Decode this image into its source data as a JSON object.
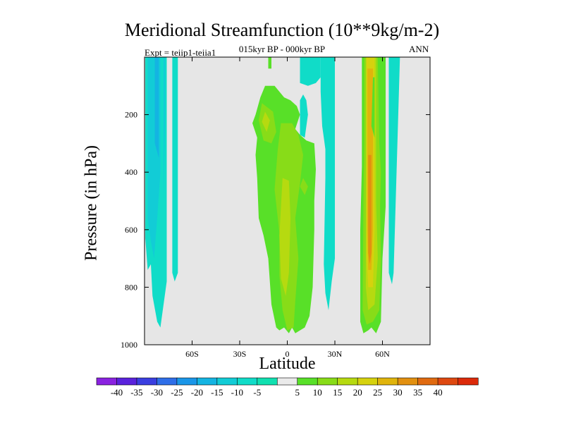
{
  "chart_data": {
    "type": "heatmap",
    "title": "Meridional Streamfunction (10**9kg/m-2)",
    "subtitle": "015kyr BP - 000kyr BP",
    "left_label": "Expt = teiip1-teiia1",
    "right_label": "ANN",
    "xlabel": "Latitude",
    "ylabel": "Pressure (in hPa)",
    "xlim": [
      -90,
      90
    ],
    "ylim": [
      1000,
      0
    ],
    "x_ticks": [
      {
        "value": -60,
        "label": "60S"
      },
      {
        "value": -30,
        "label": "30S"
      },
      {
        "value": 0,
        "label": "0"
      },
      {
        "value": 30,
        "label": "30N"
      },
      {
        "value": 60,
        "label": "60N"
      }
    ],
    "y_ticks": [
      {
        "value": 200,
        "label": "200"
      },
      {
        "value": 400,
        "label": "400"
      },
      {
        "value": 600,
        "label": "600"
      },
      {
        "value": 800,
        "label": "800"
      },
      {
        "value": 1000,
        "label": "1000"
      }
    ],
    "missing_color": "#e6e6e6",
    "colorbar": {
      "colors": [
        "#8a22e0",
        "#5a22dc",
        "#3a3ee0",
        "#2e6ee8",
        "#1a96e8",
        "#14b4e2",
        "#12ccd6",
        "#10dcc8",
        "#10e0b0",
        "#eaeaea",
        "#58e028",
        "#88dc18",
        "#b6da10",
        "#d6d20e",
        "#e0b40c",
        "#e29010",
        "#e06a10",
        "#de4810",
        "#dc2a0a"
      ],
      "labels": [
        "-40",
        "-35",
        "-30",
        "-25",
        "-20",
        "-15",
        "-10",
        "-5",
        "5",
        "10",
        "15",
        "20",
        "25",
        "30",
        "35",
        "40"
      ]
    },
    "regions": [
      {
        "value": -7.5,
        "color": "#10dcc8",
        "points": [
          [
            -89.5,
            0
          ],
          [
            -89.5,
            630
          ],
          [
            -88,
            740
          ],
          [
            -86,
            720
          ],
          [
            -85,
            830
          ],
          [
            -82,
            920
          ],
          [
            -80,
            940
          ],
          [
            -78,
            860
          ],
          [
            -76,
            780
          ],
          [
            -76,
            0
          ]
        ]
      },
      {
        "value": -12.5,
        "color": "#12ccd6",
        "points": [
          [
            -88,
            0
          ],
          [
            -88,
            560
          ],
          [
            -86,
            640
          ],
          [
            -84,
            700
          ],
          [
            -82,
            560
          ],
          [
            -80,
            400
          ],
          [
            -80,
            0
          ]
        ]
      },
      {
        "value": -12.5,
        "color": "#12ccd6",
        "points": [
          [
            -78,
            0
          ],
          [
            -78,
            500
          ],
          [
            -77,
            200
          ],
          [
            -77,
            0
          ]
        ]
      },
      {
        "value": -17.5,
        "color": "#14b4e2",
        "points": [
          [
            -83.5,
            0
          ],
          [
            -83.5,
            300
          ],
          [
            -81,
            350
          ],
          [
            -81,
            0
          ]
        ]
      },
      {
        "value": -7.5,
        "color": "#10dcc8",
        "points": [
          [
            -72.5,
            0
          ],
          [
            -72.5,
            750
          ],
          [
            -71,
            780
          ],
          [
            -69,
            750
          ],
          [
            -69,
            0
          ]
        ]
      },
      {
        "value": 7.5,
        "color": "#58e028",
        "points": [
          [
            -12,
            0
          ],
          [
            -12,
            40
          ],
          [
            -10,
            40
          ],
          [
            -10,
            0
          ]
        ]
      },
      {
        "value": 7.5,
        "color": "#58e028",
        "points": [
          [
            -20,
            200
          ],
          [
            -22,
            230
          ],
          [
            -19,
            280
          ],
          [
            -20,
            340
          ],
          [
            -19,
            420
          ],
          [
            -18,
            560
          ],
          [
            -15,
            620
          ],
          [
            -12,
            700
          ],
          [
            -10,
            860
          ],
          [
            -7,
            940
          ],
          [
            -5,
            950
          ],
          [
            -2,
            940
          ],
          [
            1,
            960
          ],
          [
            3,
            940
          ],
          [
            5,
            960
          ],
          [
            8,
            950
          ],
          [
            11,
            940
          ],
          [
            14,
            900
          ],
          [
            16,
            800
          ],
          [
            17,
            600
          ],
          [
            17,
            500
          ],
          [
            18,
            390
          ],
          [
            17,
            300
          ],
          [
            12,
            290
          ],
          [
            8,
            270
          ],
          [
            5,
            250
          ],
          [
            8,
            200
          ],
          [
            6,
            170
          ],
          [
            2,
            150
          ],
          [
            -2,
            140
          ],
          [
            -5,
            120
          ],
          [
            -8,
            100
          ],
          [
            -14,
            100
          ],
          [
            -17,
            140
          ]
        ]
      },
      {
        "value": 12.5,
        "color": "#88dc18",
        "points": [
          [
            -16,
            160
          ],
          [
            -18,
            220
          ],
          [
            -15,
            290
          ],
          [
            -10,
            300
          ],
          [
            -7,
            260
          ],
          [
            -9,
            190
          ]
        ]
      },
      {
        "value": 12.5,
        "color": "#88dc18",
        "points": [
          [
            -4,
            230
          ],
          [
            -6,
            320
          ],
          [
            -8,
            460
          ],
          [
            -5,
            610
          ],
          [
            -5,
            760
          ],
          [
            -3,
            880
          ],
          [
            0,
            950
          ],
          [
            4,
            940
          ],
          [
            5,
            850
          ],
          [
            7,
            700
          ],
          [
            5,
            560
          ],
          [
            8,
            440
          ],
          [
            10,
            340
          ],
          [
            7,
            270
          ],
          [
            3,
            230
          ]
        ]
      },
      {
        "value": 17.5,
        "color": "#b6da10",
        "points": [
          [
            -14,
            190
          ],
          [
            -16,
            225
          ],
          [
            -13,
            260
          ],
          [
            -11,
            220
          ]
        ]
      },
      {
        "value": 17.5,
        "color": "#b6da10",
        "points": [
          [
            -3,
            420
          ],
          [
            -5,
            620
          ],
          [
            -4,
            770
          ],
          [
            -1,
            830
          ],
          [
            1,
            750
          ],
          [
            2,
            560
          ],
          [
            1,
            430
          ]
        ]
      },
      {
        "value": 12.5,
        "color": "#88dc18",
        "points": [
          [
            10,
            420
          ],
          [
            8,
            450
          ],
          [
            11,
            480
          ],
          [
            13,
            450
          ]
        ]
      },
      {
        "value": 7.5,
        "color": "#58e028",
        "points": [
          [
            15,
            0
          ],
          [
            15,
            60
          ],
          [
            17,
            60
          ],
          [
            17,
            0
          ]
        ]
      },
      {
        "value": -7.5,
        "color": "#10dcc8",
        "points": [
          [
            8,
            0
          ],
          [
            8,
            90
          ],
          [
            13,
            100
          ],
          [
            18,
            90
          ],
          [
            21,
            70
          ],
          [
            21,
            0
          ]
        ]
      },
      {
        "value": -7.5,
        "color": "#10dcc8",
        "points": [
          [
            8,
            200
          ],
          [
            8,
            270
          ],
          [
            11,
            280
          ],
          [
            13,
            200
          ],
          [
            12,
            150
          ],
          [
            10,
            130
          ],
          [
            8,
            150
          ]
        ]
      },
      {
        "value": -7.5,
        "color": "#10dcc8",
        "points": [
          [
            23,
            280
          ],
          [
            24,
            320
          ],
          [
            24,
            420
          ],
          [
            23,
            720
          ],
          [
            24,
            820
          ],
          [
            26,
            880
          ],
          [
            28,
            780
          ],
          [
            30,
            700
          ],
          [
            30,
            0
          ],
          [
            21,
            0
          ],
          [
            21,
            120
          ],
          [
            22,
            240
          ]
        ]
      },
      {
        "value": 7.5,
        "color": "#58e028",
        "points": [
          [
            47,
            0
          ],
          [
            47,
            380
          ],
          [
            46,
            600
          ],
          [
            46,
            920
          ],
          [
            48,
            960
          ],
          [
            51,
            950
          ],
          [
            53,
            940
          ],
          [
            56,
            960
          ],
          [
            59,
            920
          ],
          [
            60,
            700
          ],
          [
            62,
            520
          ],
          [
            62,
            0
          ]
        ]
      },
      {
        "value": 12.5,
        "color": "#88dc18",
        "points": [
          [
            48.5,
            0
          ],
          [
            48.5,
            300
          ],
          [
            48,
            500
          ],
          [
            47.5,
            880
          ],
          [
            50,
            930
          ],
          [
            54,
            920
          ],
          [
            58,
            880
          ],
          [
            59,
            700
          ],
          [
            58.5,
            520
          ],
          [
            59,
            400
          ],
          [
            58,
            300
          ],
          [
            57,
            0
          ]
        ]
      },
      {
        "value": 17.5,
        "color": "#b6da10",
        "points": [
          [
            49.5,
            0
          ],
          [
            49.5,
            800
          ],
          [
            51,
            880
          ],
          [
            55,
            860
          ],
          [
            57,
            700
          ],
          [
            56,
            500
          ],
          [
            56,
            0
          ]
        ]
      },
      {
        "value": 22.5,
        "color": "#d6d20e",
        "points": [
          [
            50,
            0
          ],
          [
            50,
            700
          ],
          [
            51,
            800
          ],
          [
            54,
            800
          ],
          [
            55,
            600
          ],
          [
            55,
            0
          ]
        ]
      },
      {
        "value": 27.5,
        "color": "#e0b40c",
        "points": [
          [
            50.5,
            40
          ],
          [
            50.5,
            600
          ],
          [
            51,
            740
          ],
          [
            53,
            740
          ],
          [
            54,
            600
          ],
          [
            54,
            40
          ]
        ]
      },
      {
        "value": 32.5,
        "color": "#e29010",
        "points": [
          [
            51,
            340
          ],
          [
            51,
            680
          ],
          [
            52,
            720
          ],
          [
            53,
            680
          ],
          [
            53,
            340
          ]
        ]
      },
      {
        "value": 7.5,
        "color": "#58e028",
        "points": [
          [
            54,
            70
          ],
          [
            53,
            240
          ],
          [
            55,
            280
          ],
          [
            55,
            70
          ]
        ]
      },
      {
        "value": -7.5,
        "color": "#10dcc8",
        "points": [
          [
            64,
            0
          ],
          [
            64,
            750
          ],
          [
            66,
            790
          ],
          [
            67,
            750
          ],
          [
            71,
            0
          ]
        ]
      }
    ]
  }
}
